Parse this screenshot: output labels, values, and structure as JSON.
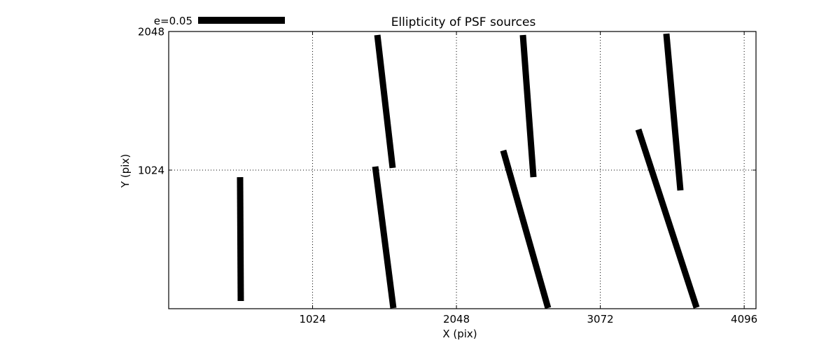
{
  "figure": {
    "background": "#ffffff",
    "foreground": "#000000"
  },
  "chart_data": {
    "type": "line",
    "subtype": "ellipticity-whisker-plot",
    "title": "Ellipticity of PSF sources",
    "xlabel": "X (pix)",
    "ylabel": "Y (pix)",
    "xlim": [
      0,
      4180
    ],
    "ylim": [
      0,
      2048
    ],
    "xticks": [
      1024,
      2048,
      3072,
      4096
    ],
    "yticks": [
      1024,
      2048
    ],
    "grid": "dotted",
    "legend": {
      "label": "e=0.05",
      "position": "upper-left-above-axes"
    },
    "series": [
      {
        "name": "psf-ellipticity-whiskers",
        "color": "#000000",
        "segments": [
          [
            [
              508,
              972
            ],
            [
              513,
              57
            ]
          ],
          [
            [
              1485,
              2022
            ],
            [
              1594,
              1040
            ]
          ],
          [
            [
              1470,
              1050
            ],
            [
              1599,
              5
            ]
          ],
          [
            [
              2521,
              2022
            ],
            [
              2596,
              972
            ]
          ],
          [
            [
              2381,
              1169
            ],
            [
              2700,
              5
            ]
          ],
          [
            [
              3542,
              2032
            ],
            [
              3642,
              874
            ]
          ],
          [
            [
              3343,
              1324
            ],
            [
              3757,
              8
            ]
          ]
        ]
      }
    ]
  }
}
